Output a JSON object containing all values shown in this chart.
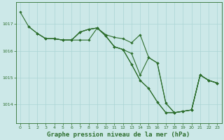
{
  "background_color": "#cce8e8",
  "grid_color": "#aad4d4",
  "line_color": "#2d6e2d",
  "marker_color": "#2d6e2d",
  "title": "Graphe pression niveau de la mer (hPa)",
  "title_fontsize": 6.5,
  "title_color": "#2d6e2d",
  "xlim": [
    -0.5,
    23.5
  ],
  "ylim": [
    1013.3,
    1017.8
  ],
  "yticks": [
    1014,
    1015,
    1016,
    1017
  ],
  "xticks": [
    0,
    1,
    2,
    3,
    4,
    5,
    6,
    7,
    8,
    9,
    10,
    11,
    12,
    13,
    14,
    15,
    16,
    17,
    18,
    19,
    20,
    21,
    22,
    23
  ],
  "series": [
    {
      "x": [
        0,
        1,
        2,
        3,
        4,
        5,
        6,
        7,
        8,
        9,
        10,
        11,
        12,
        13,
        14,
        15,
        16,
        17,
        18,
        19,
        20,
        21,
        22,
        23
      ],
      "y": [
        1017.45,
        1016.9,
        1016.65,
        1016.45,
        1016.45,
        1016.4,
        1016.4,
        1016.4,
        1016.4,
        1016.85,
        1016.6,
        1016.5,
        1016.45,
        1016.3,
        1016.6,
        1015.75,
        1015.55,
        1014.05,
        1013.7,
        1013.75,
        1013.8,
        1015.1,
        1014.9,
        1014.8
      ]
    },
    {
      "x": [
        1,
        2,
        3,
        4,
        5,
        6,
        7,
        8,
        9,
        10,
        11,
        12,
        13,
        14,
        15,
        16,
        17,
        18,
        19,
        20,
        21,
        22,
        23
      ],
      "y": [
        1016.9,
        1016.65,
        1016.45,
        1016.45,
        1016.4,
        1016.4,
        1016.7,
        1016.8,
        1016.85,
        1016.55,
        1016.15,
        1016.05,
        1015.9,
        1015.1,
        1015.75,
        1015.55,
        1014.05,
        1013.7,
        1013.75,
        1013.8,
        1015.1,
        1014.9,
        1014.8
      ]
    },
    {
      "x": [
        2,
        3,
        4,
        5,
        6,
        7,
        8,
        9,
        10,
        11,
        12,
        13,
        14,
        15,
        16,
        17,
        18,
        19,
        20,
        21,
        22,
        23
      ],
      "y": [
        1016.65,
        1016.45,
        1016.45,
        1016.4,
        1016.4,
        1016.7,
        1016.8,
        1016.85,
        1016.55,
        1016.15,
        1016.05,
        1015.5,
        1014.9,
        1014.6,
        1014.1,
        1013.7,
        1013.7,
        1013.75,
        1013.8,
        1015.1,
        1014.9,
        1014.8
      ]
    },
    {
      "x": [
        3,
        4,
        5,
        6,
        7,
        8,
        9,
        10,
        11,
        12,
        13,
        14,
        15,
        16,
        17,
        18,
        19,
        20,
        21,
        22,
        23
      ],
      "y": [
        1016.45,
        1016.45,
        1016.4,
        1016.4,
        1016.7,
        1016.8,
        1016.85,
        1016.55,
        1016.15,
        1016.05,
        1015.5,
        1014.9,
        1014.6,
        1014.1,
        1013.7,
        1013.7,
        1013.75,
        1013.8,
        1015.1,
        1014.9,
        1014.8
      ]
    }
  ]
}
